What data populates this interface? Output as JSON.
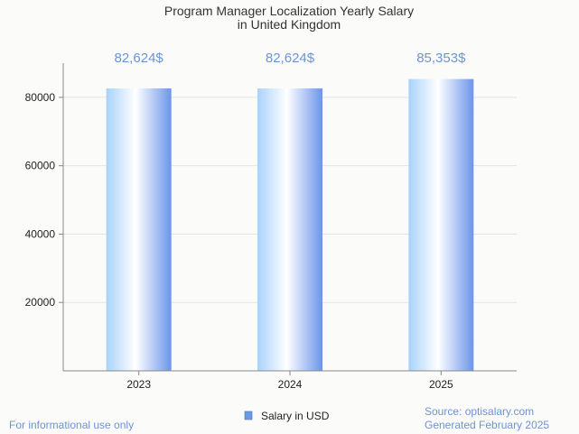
{
  "chart_data": {
    "type": "bar",
    "title_lines": [
      "Program Manager Localization Yearly Salary",
      "in United Kingdom"
    ],
    "categories": [
      "2023",
      "2024",
      "2025"
    ],
    "series": [
      {
        "name": "Salary in USD",
        "values": [
          82624,
          82624,
          85353
        ]
      }
    ],
    "data_labels": [
      "82,624$",
      "82,624$",
      "85,353$"
    ],
    "y_ticks": [
      20000,
      40000,
      60000,
      80000
    ],
    "y_tick_labels": [
      "20000",
      "40000",
      "60000",
      "80000"
    ],
    "ylim": [
      0,
      90000
    ],
    "grid": true,
    "legend_position": "bottom"
  },
  "footer": {
    "left_note": "For informational use only",
    "source": "Source: optisalary.com",
    "generated": "Generated February 2025"
  },
  "colors": {
    "bar_light": "#ffffff",
    "bar_mid": "#a9d2fb",
    "bar_dark": "#6b95ea",
    "legend_swatch": "#6e9be0",
    "data_label": "#6d93d6",
    "grid": "#e4e4e4",
    "axis": "#888888"
  }
}
